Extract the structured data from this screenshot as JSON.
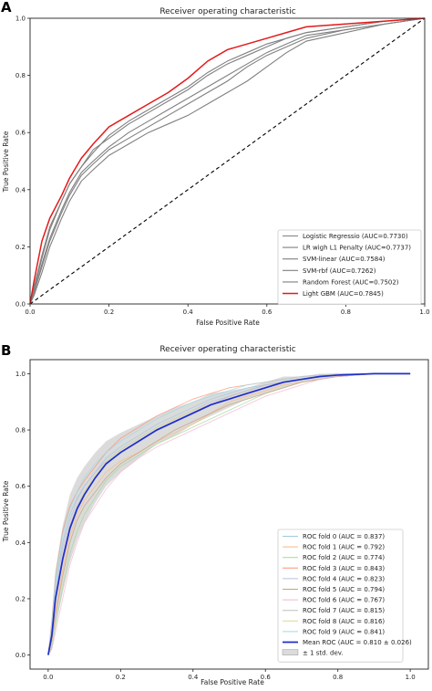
{
  "chart_data": [
    {
      "panel_label": "A",
      "type": "line",
      "title": "Receiver operating characteristic",
      "xlabel": "False Positive Rate",
      "ylabel": "True Positive Rate",
      "xlim": [
        0,
        1
      ],
      "ylim": [
        0,
        1
      ],
      "xticks": [
        "0.0",
        "0.2",
        "0.4",
        "0.6",
        "0.8",
        "1.0"
      ],
      "yticks": [
        "0.0",
        "0.2",
        "0.4",
        "0.6",
        "0.8",
        "1.0"
      ],
      "grid": false,
      "legend_position": "lower right",
      "colors": {
        "models": "#808080",
        "highlight": "#e31a1c",
        "chance": "#000000"
      },
      "series": [
        {
          "name": "Logistic Regressio (AUC=0.7730)",
          "color": "#808080",
          "x": [
            0,
            0.01,
            0.03,
            0.05,
            0.08,
            0.1,
            0.13,
            0.16,
            0.2,
            0.25,
            0.3,
            0.35,
            0.4,
            0.45,
            0.5,
            0.55,
            0.6,
            0.65,
            0.7,
            0.8,
            0.9,
            1.0
          ],
          "y": [
            0,
            0.05,
            0.16,
            0.26,
            0.36,
            0.42,
            0.48,
            0.54,
            0.58,
            0.63,
            0.67,
            0.71,
            0.75,
            0.8,
            0.84,
            0.87,
            0.9,
            0.93,
            0.95,
            0.97,
            0.99,
            1.0
          ]
        },
        {
          "name": "LR wigh L1 Penalty (AUC=0.7737)",
          "color": "#808080",
          "x": [
            0,
            0.01,
            0.03,
            0.05,
            0.08,
            0.1,
            0.13,
            0.16,
            0.2,
            0.25,
            0.3,
            0.35,
            0.4,
            0.45,
            0.5,
            0.55,
            0.6,
            0.65,
            0.7,
            0.8,
            0.9,
            1.0
          ],
          "y": [
            0,
            0.06,
            0.17,
            0.27,
            0.36,
            0.42,
            0.48,
            0.53,
            0.59,
            0.64,
            0.68,
            0.72,
            0.76,
            0.81,
            0.85,
            0.88,
            0.91,
            0.93,
            0.95,
            0.97,
            0.99,
            1.0
          ]
        },
        {
          "name": "SVM-linear (AUC=0.7584)",
          "color": "#808080",
          "x": [
            0,
            0.01,
            0.03,
            0.05,
            0.08,
            0.1,
            0.13,
            0.16,
            0.2,
            0.25,
            0.3,
            0.35,
            0.4,
            0.45,
            0.5,
            0.55,
            0.6,
            0.65,
            0.7,
            0.8,
            0.9,
            1.0
          ],
          "y": [
            0,
            0.04,
            0.14,
            0.23,
            0.33,
            0.39,
            0.46,
            0.5,
            0.55,
            0.6,
            0.64,
            0.68,
            0.72,
            0.76,
            0.8,
            0.84,
            0.88,
            0.91,
            0.94,
            0.96,
            0.98,
            1.0
          ]
        },
        {
          "name": "SVM-rbf (AUC=0.7262)",
          "color": "#808080",
          "x": [
            0,
            0.01,
            0.03,
            0.05,
            0.08,
            0.1,
            0.13,
            0.16,
            0.2,
            0.25,
            0.3,
            0.35,
            0.4,
            0.45,
            0.5,
            0.55,
            0.6,
            0.65,
            0.7,
            0.8,
            0.9,
            1.0
          ],
          "y": [
            0,
            0.03,
            0.11,
            0.2,
            0.3,
            0.36,
            0.43,
            0.47,
            0.52,
            0.56,
            0.6,
            0.63,
            0.66,
            0.7,
            0.74,
            0.78,
            0.83,
            0.88,
            0.92,
            0.95,
            0.98,
            1.0
          ]
        },
        {
          "name": "Random Forest (AUC=0.7502)",
          "color": "#808080",
          "x": [
            0,
            0.01,
            0.03,
            0.05,
            0.08,
            0.1,
            0.13,
            0.16,
            0.2,
            0.25,
            0.3,
            0.35,
            0.4,
            0.45,
            0.5,
            0.55,
            0.6,
            0.65,
            0.7,
            0.8,
            0.9,
            1.0
          ],
          "y": [
            0,
            0.04,
            0.13,
            0.22,
            0.32,
            0.38,
            0.45,
            0.49,
            0.54,
            0.58,
            0.62,
            0.66,
            0.7,
            0.74,
            0.78,
            0.83,
            0.87,
            0.9,
            0.93,
            0.96,
            0.98,
            1.0
          ]
        },
        {
          "name": "Light GBM (AUC=0.7845)",
          "color": "#e31a1c",
          "x": [
            0,
            0.01,
            0.03,
            0.05,
            0.08,
            0.1,
            0.13,
            0.16,
            0.2,
            0.25,
            0.3,
            0.35,
            0.4,
            0.45,
            0.5,
            0.55,
            0.6,
            0.65,
            0.7,
            0.8,
            0.9,
            1.0
          ],
          "y": [
            0,
            0.08,
            0.22,
            0.3,
            0.38,
            0.44,
            0.51,
            0.56,
            0.62,
            0.66,
            0.7,
            0.74,
            0.79,
            0.85,
            0.89,
            0.91,
            0.93,
            0.95,
            0.97,
            0.98,
            0.99,
            1.0
          ]
        }
      ],
      "chance_line": {
        "x": [
          0,
          1
        ],
        "y": [
          0,
          1
        ],
        "style": "dashed"
      }
    },
    {
      "panel_label": "B",
      "type": "line",
      "title": "Receiver operating characteristic",
      "xlabel": "False Positive Rate",
      "ylabel": "True Positive Rate",
      "xlim": [
        0,
        1
      ],
      "ylim": [
        0,
        1
      ],
      "xticks": [
        "0.0",
        "0.2",
        "0.4",
        "0.6",
        "0.8",
        "1.0"
      ],
      "yticks": [
        "0.0",
        "0.2",
        "0.4",
        "0.6",
        "0.8",
        "1.0"
      ],
      "grid": false,
      "legend_position": "lower right",
      "x": [
        0,
        0.01,
        0.02,
        0.04,
        0.06,
        0.08,
        0.1,
        0.13,
        0.16,
        0.2,
        0.25,
        0.3,
        0.35,
        0.4,
        0.45,
        0.5,
        0.55,
        0.6,
        0.65,
        0.7,
        0.75,
        0.8,
        0.9,
        1.0
      ],
      "series": [
        {
          "name": "ROC fold 0 (AUC = 0.837)",
          "color": "#9ecae1",
          "y": [
            0,
            0.1,
            0.25,
            0.4,
            0.5,
            0.56,
            0.6,
            0.65,
            0.7,
            0.74,
            0.78,
            0.82,
            0.85,
            0.88,
            0.91,
            0.93,
            0.95,
            0.96,
            0.97,
            0.98,
            0.99,
            0.995,
            1.0,
            1.0
          ]
        },
        {
          "name": "ROC fold 1 (AUC = 0.792)",
          "color": "#fdb97d",
          "y": [
            0,
            0.05,
            0.15,
            0.3,
            0.42,
            0.5,
            0.55,
            0.6,
            0.65,
            0.69,
            0.72,
            0.76,
            0.79,
            0.82,
            0.86,
            0.9,
            0.92,
            0.94,
            0.96,
            0.97,
            0.98,
            0.99,
            1.0,
            1.0
          ]
        },
        {
          "name": "ROC fold 2 (AUC = 0.774)",
          "color": "#a1d99b",
          "y": [
            0,
            0.03,
            0.1,
            0.24,
            0.36,
            0.44,
            0.5,
            0.56,
            0.62,
            0.67,
            0.71,
            0.75,
            0.78,
            0.81,
            0.84,
            0.87,
            0.9,
            0.93,
            0.95,
            0.97,
            0.98,
            0.99,
            1.0,
            1.0
          ]
        },
        {
          "name": "ROC fold 3 (AUC = 0.843)",
          "color": "#fc9272",
          "y": [
            0,
            0.12,
            0.28,
            0.44,
            0.53,
            0.58,
            0.62,
            0.67,
            0.72,
            0.77,
            0.81,
            0.85,
            0.88,
            0.91,
            0.93,
            0.95,
            0.96,
            0.97,
            0.98,
            0.99,
            0.995,
            1.0,
            1.0,
            1.0
          ]
        },
        {
          "name": "ROC fold 4 (AUC = 0.823)",
          "color": "#bcbddc",
          "y": [
            0,
            0.08,
            0.22,
            0.38,
            0.48,
            0.55,
            0.6,
            0.65,
            0.69,
            0.73,
            0.77,
            0.81,
            0.84,
            0.87,
            0.9,
            0.92,
            0.94,
            0.96,
            0.97,
            0.98,
            0.99,
            0.995,
            1.0,
            1.0
          ]
        },
        {
          "name": "ROC fold 5 (AUC = 0.794)",
          "color": "#c7a17a",
          "y": [
            0,
            0.05,
            0.14,
            0.28,
            0.4,
            0.48,
            0.53,
            0.58,
            0.63,
            0.68,
            0.72,
            0.76,
            0.8,
            0.83,
            0.86,
            0.89,
            0.91,
            0.93,
            0.95,
            0.97,
            0.98,
            0.99,
            1.0,
            1.0
          ]
        },
        {
          "name": "ROC fold 6 (AUC = 0.767)",
          "color": "#f4b6d2",
          "y": [
            0,
            0.02,
            0.08,
            0.2,
            0.32,
            0.4,
            0.47,
            0.53,
            0.59,
            0.65,
            0.7,
            0.74,
            0.77,
            0.8,
            0.83,
            0.86,
            0.89,
            0.92,
            0.94,
            0.96,
            0.98,
            0.99,
            1.0,
            1.0
          ]
        },
        {
          "name": "ROC fold 7 (AUC = 0.815)",
          "color": "#bdbdbd",
          "y": [
            0,
            0.07,
            0.2,
            0.35,
            0.46,
            0.53,
            0.58,
            0.63,
            0.68,
            0.72,
            0.76,
            0.8,
            0.83,
            0.86,
            0.89,
            0.92,
            0.94,
            0.96,
            0.97,
            0.98,
            0.99,
            0.995,
            1.0,
            1.0
          ]
        },
        {
          "name": "ROC fold 8 (AUC = 0.816)",
          "color": "#dbdb8d",
          "y": [
            0,
            0.07,
            0.19,
            0.34,
            0.45,
            0.52,
            0.58,
            0.64,
            0.69,
            0.73,
            0.77,
            0.81,
            0.84,
            0.87,
            0.89,
            0.91,
            0.93,
            0.95,
            0.97,
            0.98,
            0.99,
            0.995,
            1.0,
            1.0
          ]
        },
        {
          "name": "ROC fold 9 (AUC = 0.841)",
          "color": "#9edae5",
          "y": [
            0,
            0.11,
            0.27,
            0.43,
            0.52,
            0.58,
            0.63,
            0.68,
            0.72,
            0.76,
            0.8,
            0.84,
            0.87,
            0.9,
            0.92,
            0.94,
            0.96,
            0.97,
            0.98,
            0.99,
            0.995,
            1.0,
            1.0,
            1.0
          ]
        }
      ],
      "mean": {
        "name": "Mean ROC (AUC = 0.810 ± 0.026)",
        "color": "#1f2ec9",
        "y": [
          0,
          0.07,
          0.2,
          0.34,
          0.45,
          0.52,
          0.57,
          0.63,
          0.68,
          0.72,
          0.76,
          0.8,
          0.83,
          0.86,
          0.89,
          0.91,
          0.93,
          0.95,
          0.97,
          0.98,
          0.99,
          0.995,
          1.0,
          1.0
        ]
      },
      "std_band": {
        "name": "± 1 std. dev.",
        "color": "#bdbdbd",
        "lower": [
          0,
          0.02,
          0.1,
          0.22,
          0.33,
          0.41,
          0.47,
          0.54,
          0.6,
          0.65,
          0.7,
          0.75,
          0.78,
          0.82,
          0.85,
          0.88,
          0.91,
          0.93,
          0.95,
          0.97,
          0.98,
          0.99,
          1.0,
          1.0
        ],
        "upper": [
          0,
          0.12,
          0.3,
          0.46,
          0.57,
          0.63,
          0.67,
          0.72,
          0.76,
          0.79,
          0.82,
          0.85,
          0.88,
          0.9,
          0.93,
          0.94,
          0.95,
          0.97,
          0.99,
          0.99,
          1.0,
          1.0,
          1.0,
          1.0
        ]
      }
    }
  ]
}
